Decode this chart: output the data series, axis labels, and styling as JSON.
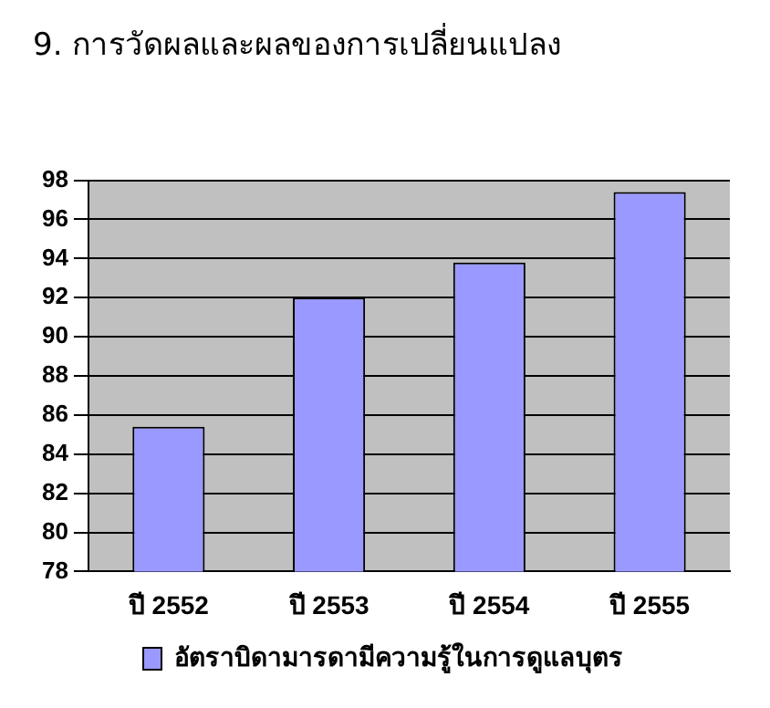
{
  "chart_data": {
    "type": "bar",
    "title": "9. การวัดผลและผลของการเปลี่ยนแปลง",
    "categories": [
      "ปี 2552",
      "ปี 2553",
      "ปี 2554",
      "ปี 2555"
    ],
    "series": [
      {
        "name": "อัตราบิดามารดามีความรู้ในการดูแลบุตร",
        "color": "#9999ff",
        "values": [
          85.4,
          92,
          93.8,
          97.4
        ]
      }
    ],
    "ylim": [
      78,
      98
    ],
    "yticks": [
      78,
      80,
      82,
      84,
      86,
      88,
      90,
      92,
      94,
      96,
      98
    ],
    "grid": "y",
    "legend": "bottom"
  }
}
